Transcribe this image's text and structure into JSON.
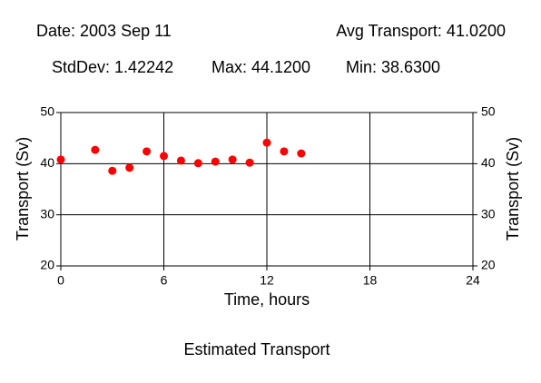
{
  "header": {
    "date": "Date: 2003 Sep 11",
    "avg": "Avg Transport: 41.0200",
    "stddev": "StdDev: 1.42242",
    "max": "Max: 44.1200",
    "min": "Min: 38.6300"
  },
  "chart_data": {
    "type": "scatter",
    "title": "Estimated Transport",
    "xlabel": "Time, hours",
    "ylabel": "Transport (Sv)",
    "y2label": "Transport (Sv)",
    "x": [
      0,
      2,
      3,
      4,
      5,
      6,
      7,
      8,
      9,
      10,
      11,
      12,
      13,
      14
    ],
    "values": [
      40.8,
      42.7,
      38.6,
      39.2,
      42.4,
      41.5,
      40.6,
      40.1,
      40.4,
      40.8,
      40.2,
      44.1,
      42.4,
      42.0
    ],
    "color": "#ff0000",
    "xlim": [
      0,
      24
    ],
    "xticks": [
      0,
      6,
      12,
      18,
      24
    ],
    "ylim": [
      20,
      50
    ],
    "yticks": [
      20,
      30,
      40,
      50
    ],
    "y2lim": [
      20,
      50
    ],
    "y2ticks": [
      20,
      30,
      40,
      50
    ],
    "grid": true
  }
}
